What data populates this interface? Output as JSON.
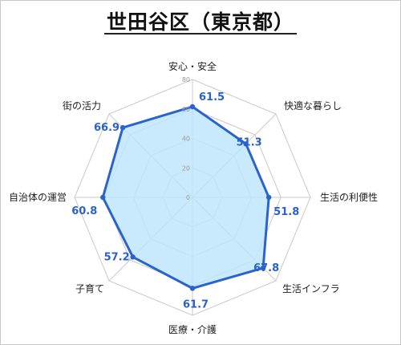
{
  "chart_data": {
    "type": "radar",
    "title": "世田谷区（東京都）",
    "categories": [
      "安心・安全",
      "快適な暮らし",
      "生活の利便性",
      "生活インフラ",
      "医療・介護",
      "子育て",
      "自治体の運営",
      "街の活力"
    ],
    "series": [
      {
        "values": [
          61.5,
          51.3,
          51.8,
          67.8,
          61.7,
          57.2,
          60.8,
          66.9
        ]
      }
    ],
    "ticks": [
      0,
      20,
      40,
      60,
      80
    ],
    "rlim": [
      0,
      80
    ],
    "grid": true,
    "colors": {
      "line": "#2b63cc",
      "fill": "#bfe6fb",
      "grid": "#c9c9c9",
      "point": "#2b63cc",
      "value_text": "#2a62c9"
    }
  }
}
